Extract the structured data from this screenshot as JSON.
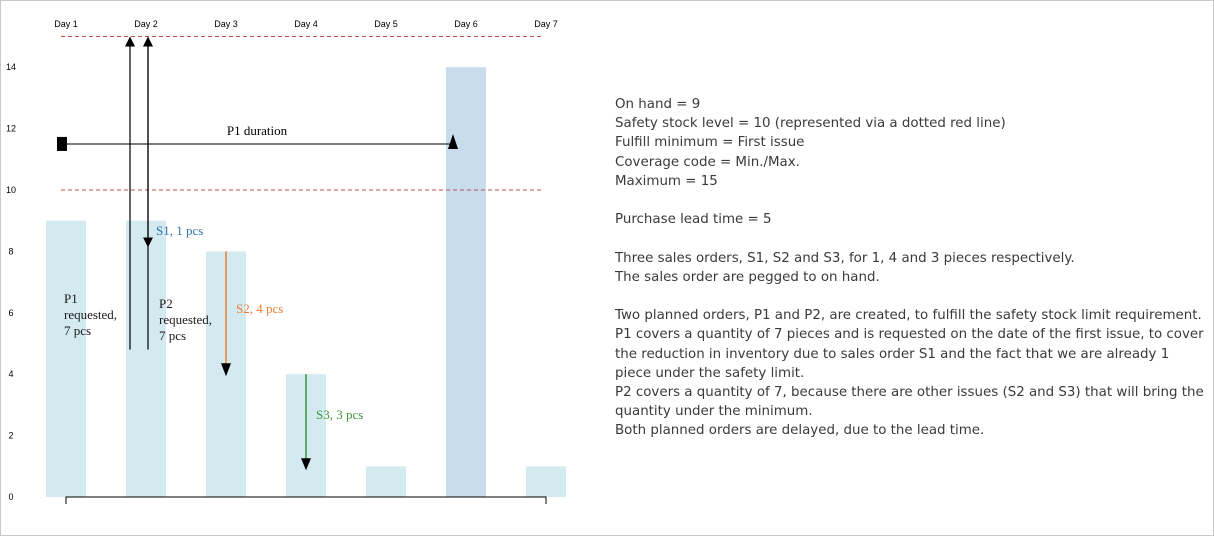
{
  "chart_data": {
    "type": "bar",
    "categories": [
      "Day 1",
      "Day 2",
      "Day 3",
      "Day 4",
      "Day 5",
      "Day 6",
      "Day 7"
    ],
    "series": [
      {
        "values": [
          9,
          9,
          8,
          4,
          1,
          1,
          1
        ],
        "color": "#d4eaf1"
      },
      {
        "values": [
          0,
          0,
          0,
          0,
          0,
          14,
          0
        ],
        "color": "#c9dcee"
      }
    ],
    "y_ticks": [
      0,
      2,
      4,
      6,
      8,
      10,
      12,
      14
    ],
    "ylim": [
      0,
      15
    ],
    "reference_lines": [
      {
        "y": 10,
        "style": "dashed",
        "color": "#c0504d"
      },
      {
        "y": 15,
        "style": "dashed",
        "color": "#c0504d"
      }
    ],
    "annotations": {
      "p1_duration": {
        "text": "P1 duration",
        "from_day": 1,
        "to_day": 6,
        "y": 11.5
      },
      "p1": {
        "lines": [
          "P1",
          "requested,",
          "7 pcs"
        ],
        "color": "#1a1a1a"
      },
      "p2": {
        "lines": [
          "P2",
          "requested,",
          "7 pcs"
        ],
        "color": "#1a1a1a"
      },
      "s1": {
        "text": "S1, 1 pcs",
        "color": "#2e74b5",
        "from": 9,
        "to": 8,
        "day": 2
      },
      "s2": {
        "text": "S2, 4 pcs",
        "color": "#ed7d31",
        "from": 8,
        "to": 4,
        "day": 3
      },
      "s3": {
        "text": "S3, 3 pcs",
        "color": "#3c963c",
        "from": 4,
        "to": 1,
        "day": 4
      }
    },
    "grid": false
  },
  "notes": {
    "l1": "On hand = 9",
    "l2": "Safety stock level = 10 (represented via a dotted red line)",
    "l3": "Fulfill minimum = First issue",
    "l4": "Coverage code = Min./Max.",
    "l5": "Maximum = 15",
    "l6": "Purchase lead time = 5",
    "l7": "Three sales orders, S1, S2 and S3, for 1, 4 and 3 pieces respectively.",
    "l8": "The sales order are pegged to on hand.",
    "l9": "Two planned orders, P1 and P2, are created, to fulfill the safety stock limit requirement.",
    "l10": "P1 covers a quantity of 7 pieces and is requested on the date of the first issue, to cover the reduction in inventory due to sales order S1 and the fact that we are already 1 piece under the safety limit.",
    "l11": "P2 covers a quantity of 7, because there are other issues (S2 and S3) that will bring the quantity under the minimum.",
    "l12": "Both planned orders are delayed, due to the lead time."
  }
}
